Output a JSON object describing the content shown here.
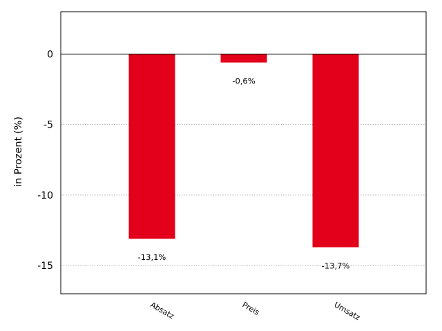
{
  "chart_data": {
    "type": "bar",
    "categories": [
      "Absatz",
      "Preis",
      "Umsatz"
    ],
    "values": [
      -13.1,
      -0.6,
      -13.7
    ],
    "data_labels": [
      "-13,1%",
      "-0,6%",
      "-13,7%"
    ],
    "ylabel": "in Prozent (%)",
    "ylim": [
      -17,
      3
    ],
    "yticks": [
      0,
      -5,
      -10,
      -15
    ],
    "ytick_labels": [
      "0",
      "-5",
      "-10",
      "-15"
    ],
    "grid": "horizontal-dotted",
    "bar_color": "#e2001a"
  }
}
